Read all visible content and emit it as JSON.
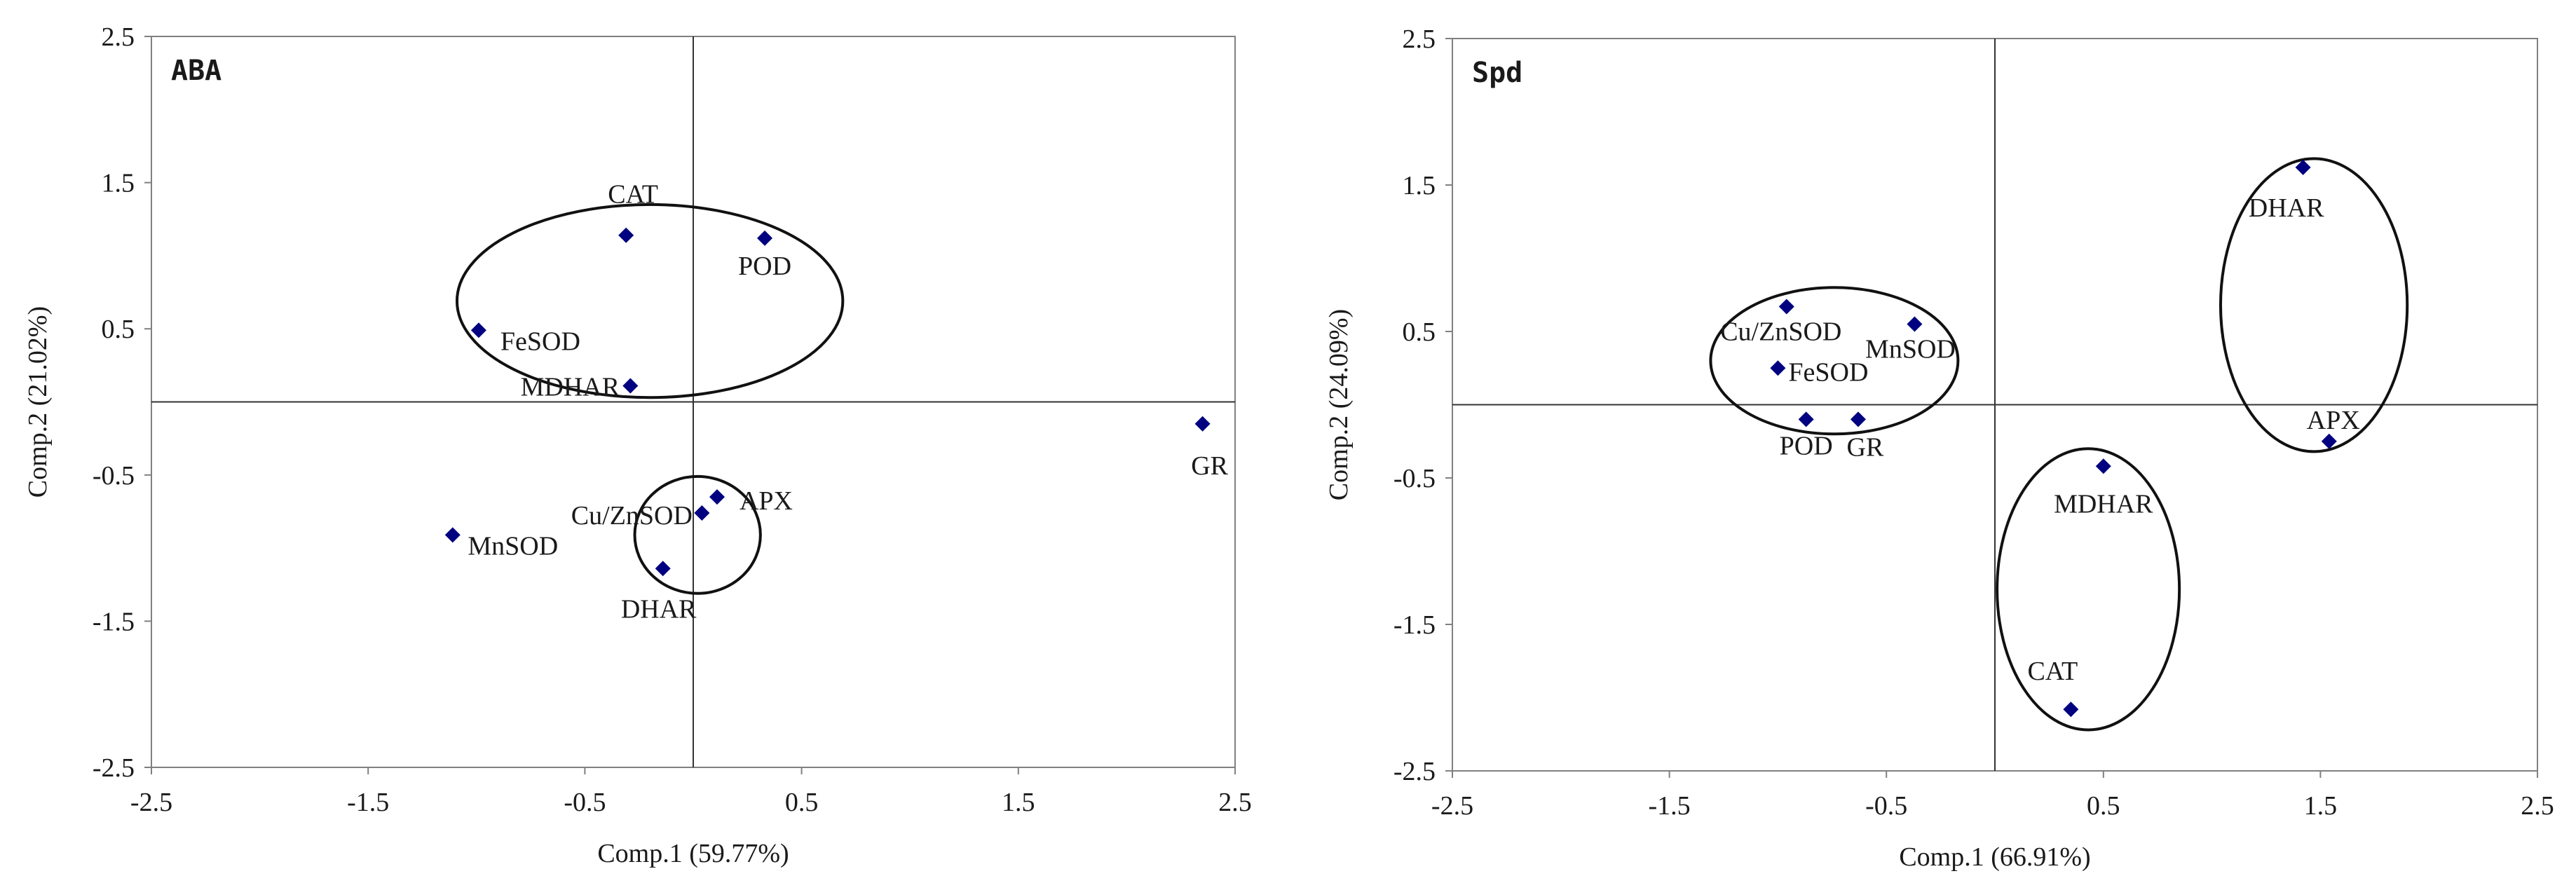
{
  "chart_data": [
    {
      "type": "scatter",
      "panel_label": "ABA",
      "xlabel": "Comp.1 (59.77%)",
      "ylabel": "Comp.2 (21.02%)",
      "xlim": [
        -2.5,
        2.5
      ],
      "ylim": [
        -2.5,
        2.5
      ],
      "xticks": [
        "-2.5",
        "-1.5",
        "-0.5",
        "0.5",
        "1.5",
        "2.5"
      ],
      "yticks": [
        "2.5",
        "1.5",
        "0.5",
        "-0.5",
        "-1.5",
        "-2.5"
      ],
      "marker_color": "#000080",
      "points": [
        {
          "label": "CAT",
          "x": -0.31,
          "y": 1.14
        },
        {
          "label": "POD",
          "x": 0.33,
          "y": 1.12
        },
        {
          "label": "FeSOD",
          "x": -0.99,
          "y": 0.49
        },
        {
          "label": "MDHAR",
          "x": -0.29,
          "y": 0.11
        },
        {
          "label": "GR",
          "x": 2.35,
          "y": -0.15
        },
        {
          "label": "APX",
          "x": 0.11,
          "y": -0.65
        },
        {
          "label": "Cu/ZnSOD",
          "x": 0.04,
          "y": -0.76
        },
        {
          "label": "MnSOD",
          "x": -1.11,
          "y": -0.91
        },
        {
          "label": "DHAR",
          "x": -0.14,
          "y": -1.14
        }
      ],
      "ellipses": [
        {
          "cx": -0.2,
          "cy": 0.69,
          "rx": 0.89,
          "ry": 0.66
        },
        {
          "cx": 0.02,
          "cy": -0.91,
          "rx": 0.29,
          "ry": 0.4
        }
      ]
    },
    {
      "type": "scatter",
      "panel_label": "Spd",
      "xlabel": "Comp.1 (66.91%)",
      "ylabel": "Comp.2 (24.09%)",
      "xlim": [
        -2.5,
        2.5
      ],
      "ylim": [
        -2.5,
        2.5
      ],
      "xticks": [
        "-2.5",
        "-1.5",
        "-0.5",
        "0.5",
        "1.5",
        "2.5"
      ],
      "yticks": [
        "2.5",
        "1.5",
        "0.5",
        "-0.5",
        "-1.5",
        "-2.5"
      ],
      "marker_color": "#000080",
      "points": [
        {
          "label": "DHAR",
          "x": 1.42,
          "y": 1.62
        },
        {
          "label": "Cu/ZnSOD",
          "x": -0.96,
          "y": 0.67
        },
        {
          "label": "MnSOD",
          "x": -0.37,
          "y": 0.55
        },
        {
          "label": "FeSOD",
          "x": -1.0,
          "y": 0.25
        },
        {
          "label": "POD",
          "x": -0.87,
          "y": -0.1
        },
        {
          "label": "GR",
          "x": -0.63,
          "y": -0.1
        },
        {
          "label": "APX",
          "x": 1.54,
          "y": -0.25
        },
        {
          "label": "MDHAR",
          "x": 0.5,
          "y": -0.42
        },
        {
          "label": "CAT",
          "x": 0.35,
          "y": -2.08
        }
      ],
      "ellipses": [
        {
          "cx": -0.74,
          "cy": 0.3,
          "rx": 0.57,
          "ry": 0.5
        },
        {
          "cx": 1.47,
          "cy": 0.68,
          "rx": 0.43,
          "ry": 1.0
        },
        {
          "cx": 0.43,
          "cy": -1.26,
          "rx": 0.42,
          "ry": 0.96
        }
      ]
    }
  ]
}
